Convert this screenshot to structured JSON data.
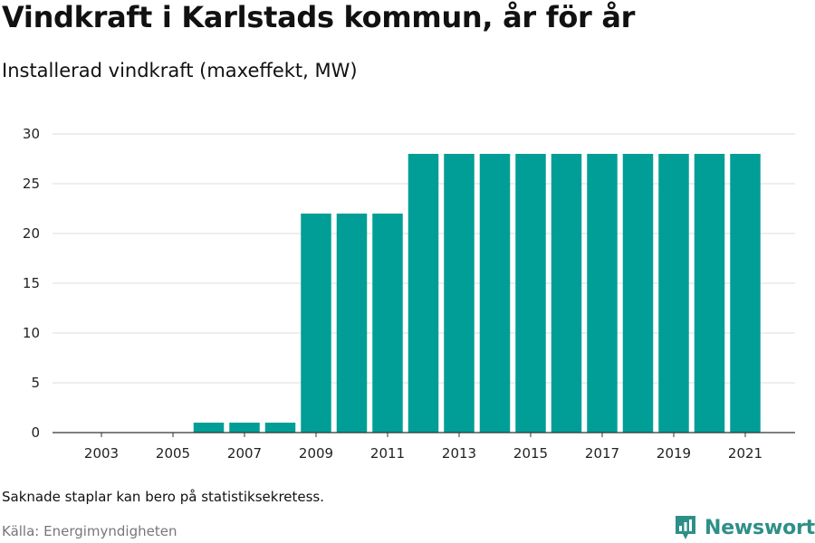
{
  "title": "Vindkraft i Karlstads kommun, år för år",
  "subtitle": "Installerad vindkraft (maxeffekt, MW)",
  "note": "Saknade staplar kan bero på statistiksekretess.",
  "source": "Källa: Energimyndigheten",
  "brand": {
    "name": "Newsworthy",
    "icon": "newsworthy-logo-icon",
    "color": "#2e8f88"
  },
  "colors": {
    "bar": "#009e96",
    "grid": "#dddddd",
    "axis": "#333333"
  },
  "chart_data": {
    "type": "bar",
    "title": "Vindkraft i Karlstads kommun, år för år",
    "subtitle": "Installerad vindkraft (maxeffekt, MW)",
    "xlabel": "",
    "ylabel": "",
    "categories": [
      "2003",
      "2004",
      "2005",
      "2006",
      "2007",
      "2008",
      "2009",
      "2010",
      "2011",
      "2012",
      "2013",
      "2014",
      "2015",
      "2016",
      "2017",
      "2018",
      "2019",
      "2020",
      "2021"
    ],
    "values": [
      null,
      null,
      null,
      1,
      1,
      1,
      22,
      22,
      22,
      28,
      28,
      28,
      28,
      28,
      28,
      28,
      28,
      28,
      28
    ],
    "x_tick_labels": [
      "2003",
      "2005",
      "2007",
      "2009",
      "2011",
      "2013",
      "2015",
      "2017",
      "2019",
      "2021"
    ],
    "y_ticks": [
      0,
      5,
      10,
      15,
      20,
      25,
      30
    ],
    "ylim": [
      0,
      30
    ],
    "grid": true,
    "legend": "none"
  }
}
